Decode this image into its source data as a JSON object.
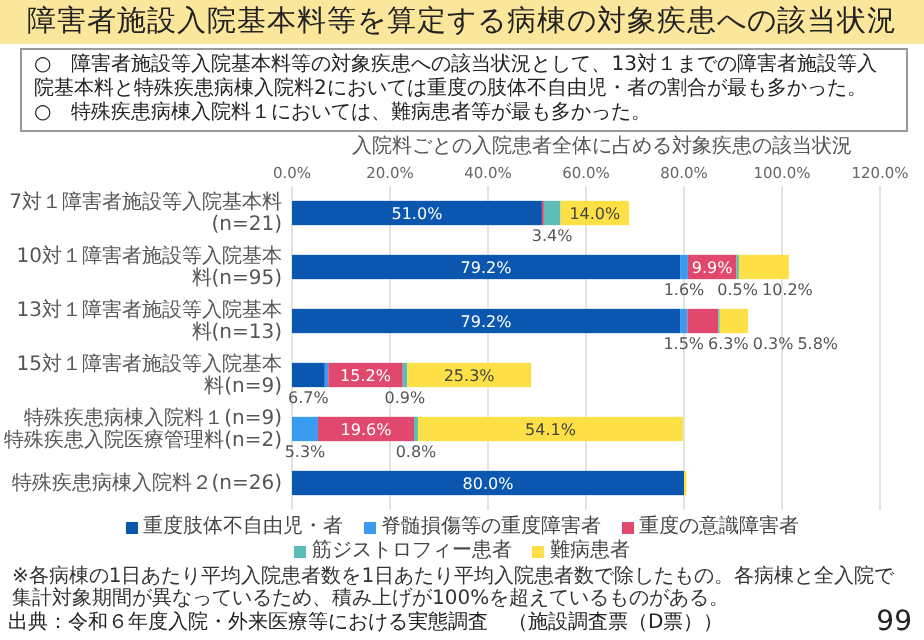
{
  "chart_data": {
    "type": "bar",
    "orientation": "horizontal",
    "stacked": true,
    "title": "障害者施設入院基本料等を算定する病棟の対象疾患への該当状況",
    "subtitle": "入院料ごとの入院患者全体に占める対象疾患の該当状況",
    "annotations": [
      "○　障害者施設等入院基本料等の対象疾患への該当状況として、13対１までの障害者施設等入院基本料と特殊疾患病棟入院料2においては重度の肢体不自由児・者の割合が最も多かった。",
      "○　特殊疾患病棟入院料１においては、難病患者等が最も多かった。",
      "※各病棟の1日あたり平均入院患者数を1日あたり平均入院患者数で除したもの。各病棟と全入院で集計対象期間が異なっているため、積み上げが100%を超えているものがある。",
      "出典：令和６年度入院・外来医療等における実態調査　（施設調査票（D票））",
      "99"
    ],
    "categories": [
      "7対１障害者施設等入院基本料(n=21)",
      "10対１障害者施設等入院基本料(n=95)",
      "13対１障害者施設等入院基本料(n=13)",
      "15対１障害者施設等入院基本料(n=9)",
      "特殊疾患病棟入院料１(n=9)\n特殊疾患入院医療管理料(n=2)",
      "特殊疾患病棟入院料２(n=26)"
    ],
    "series": [
      {
        "name": "重度肢体不自由児・者",
        "color": "#0b57b0",
        "values": [
          51.0,
          79.2,
          79.2,
          6.7,
          null,
          80.0
        ],
        "value_labels": [
          "51.0%",
          "79.2%",
          "79.2%",
          "6.7%",
          null,
          "80.0%"
        ]
      },
      {
        "name": "脊髄損傷等の重度障害者",
        "color": "#3a9cf0",
        "values": [
          null,
          1.6,
          1.5,
          0.7,
          5.3,
          null
        ],
        "value_labels": [
          null,
          "1.6%",
          "1.5%",
          null,
          "5.3%",
          null
        ]
      },
      {
        "name": "重度の意識障害者",
        "color": "#e0486e",
        "values": [
          0.4,
          9.9,
          6.3,
          15.2,
          19.6,
          null
        ],
        "value_labels": [
          null,
          "9.9%",
          "6.3%",
          "15.2%",
          "19.6%",
          null
        ]
      },
      {
        "name": "筋ジストロフィー患者",
        "color": "#5bbdb6",
        "values": [
          3.4,
          0.5,
          0.3,
          0.9,
          0.8,
          null
        ],
        "value_labels": [
          "3.4%",
          "0.5%",
          "0.3%",
          "0.9%",
          "0.8%",
          null
        ]
      },
      {
        "name": "難病患者",
        "color": "#fde046",
        "values": [
          14.0,
          10.2,
          5.8,
          25.3,
          54.1,
          0.5
        ],
        "value_labels": [
          "14.0%",
          "10.2%",
          "5.8%",
          "25.3%",
          "54.1%",
          null
        ]
      }
    ],
    "xlim": [
      0,
      120
    ],
    "xticks": [
      {
        "value": 0,
        "label": "0.0%"
      },
      {
        "value": 20,
        "label": "20.0%"
      },
      {
        "value": 40,
        "label": "40.0%"
      },
      {
        "value": 60,
        "label": "60.0%"
      },
      {
        "value": 80,
        "label": "80.0%"
      },
      {
        "value": 100,
        "label": "100.0%"
      },
      {
        "value": 120,
        "label": "120.0%"
      }
    ],
    "grid": "x",
    "legend": "bottom"
  }
}
